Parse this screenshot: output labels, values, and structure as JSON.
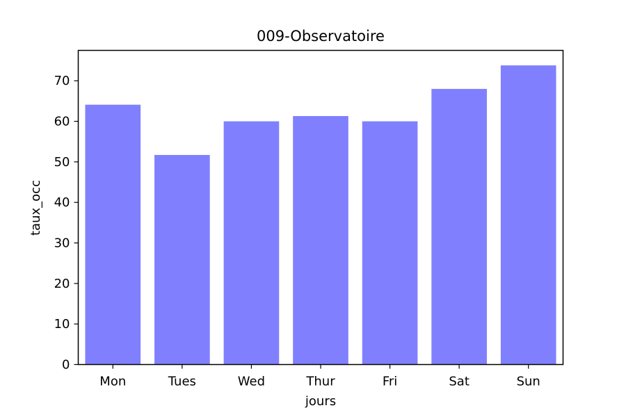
{
  "chart_data": {
    "type": "bar",
    "title": "009-Observatoire",
    "xlabel": "jours",
    "ylabel": "taux_occ",
    "categories": [
      "Mon",
      "Tues",
      "Wed",
      "Thur",
      "Fri",
      "Sat",
      "Sun"
    ],
    "values": [
      64.1,
      51.7,
      60.0,
      61.3,
      60.0,
      68.0,
      73.8
    ],
    "ylim": [
      0,
      77.5
    ],
    "yticks": [
      0,
      10,
      20,
      30,
      40,
      50,
      60,
      70
    ],
    "bar_color": "#8080ff",
    "grid": false,
    "legend": "none"
  }
}
